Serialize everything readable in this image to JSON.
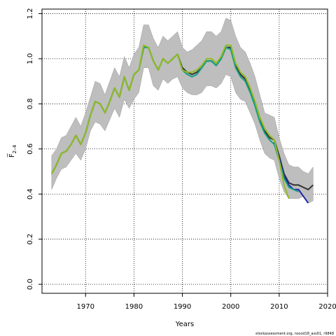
{
  "chart_data": {
    "type": "line",
    "xlabel": "Years",
    "ylabel": "F̅",
    "ylabel_sub": "2–4",
    "footer": "stockassessment.org, nscod18_ass01, r9848",
    "xlim": [
      1961,
      2020
    ],
    "ylim": [
      -0.04,
      1.22
    ],
    "xticks": [
      1970,
      1980,
      1990,
      2000,
      2010,
      2020
    ],
    "yticks": [
      0.0,
      0.2,
      0.4,
      0.6,
      0.8,
      1.0,
      1.2
    ],
    "ytick_labels": [
      "0.0",
      "0.2",
      "0.4",
      "0.6",
      "0.8",
      "1.0",
      "1.2"
    ],
    "grid": true,
    "band_color": "#bebebe",
    "band": {
      "x": [
        1963,
        1964,
        1965,
        1966,
        1967,
        1968,
        1969,
        1970,
        1971,
        1972,
        1973,
        1974,
        1975,
        1976,
        1977,
        1978,
        1979,
        1980,
        1981,
        1982,
        1983,
        1984,
        1985,
        1986,
        1987,
        1988,
        1989,
        1990,
        1991,
        1992,
        1993,
        1994,
        1995,
        1996,
        1997,
        1998,
        1999,
        2000,
        2001,
        2002,
        2003,
        2004,
        2005,
        2006,
        2007,
        2008,
        2009,
        2010,
        2011,
        2012,
        2013,
        2014,
        2015,
        2016,
        2017
      ],
      "lower": [
        0.42,
        0.47,
        0.51,
        0.52,
        0.55,
        0.58,
        0.55,
        0.6,
        0.68,
        0.72,
        0.71,
        0.68,
        0.73,
        0.78,
        0.74,
        0.82,
        0.78,
        0.82,
        0.85,
        0.96,
        0.96,
        0.88,
        0.86,
        0.91,
        0.89,
        0.91,
        0.92,
        0.87,
        0.85,
        0.84,
        0.84,
        0.85,
        0.88,
        0.88,
        0.87,
        0.89,
        0.93,
        0.92,
        0.85,
        0.82,
        0.81,
        0.76,
        0.71,
        0.64,
        0.58,
        0.56,
        0.55,
        0.47,
        0.41,
        0.38,
        0.38,
        0.38,
        0.39,
        0.36,
        0.37
      ],
      "upper": [
        0.57,
        0.6,
        0.65,
        0.66,
        0.7,
        0.74,
        0.7,
        0.76,
        0.83,
        0.9,
        0.89,
        0.84,
        0.9,
        0.96,
        0.92,
        1.01,
        0.96,
        1.02,
        1.05,
        1.15,
        1.15,
        1.09,
        1.05,
        1.1,
        1.08,
        1.1,
        1.12,
        1.05,
        1.03,
        1.04,
        1.06,
        1.08,
        1.12,
        1.12,
        1.1,
        1.12,
        1.18,
        1.17,
        1.1,
        1.05,
        1.03,
        0.98,
        0.92,
        0.84,
        0.76,
        0.75,
        0.74,
        0.65,
        0.58,
        0.53,
        0.52,
        0.52,
        0.5,
        0.49,
        0.52
      ]
    },
    "series": [
      {
        "color": "#333333",
        "x": [
          1963,
          1964,
          1965,
          1966,
          1967,
          1968,
          1969,
          1970,
          1971,
          1972,
          1973,
          1974,
          1975,
          1976,
          1977,
          1978,
          1979,
          1980,
          1981,
          1982,
          1983,
          1984,
          1985,
          1986,
          1987,
          1988,
          1989,
          1990,
          1991,
          1992,
          1993,
          1994,
          1995,
          1996,
          1997,
          1998,
          1999,
          2000,
          2001,
          2002,
          2003,
          2004,
          2005,
          2006,
          2007,
          2008,
          2009,
          2010,
          2011,
          2012,
          2013,
          2014,
          2015,
          2016,
          2017
        ],
        "y": [
          0.49,
          0.53,
          0.58,
          0.59,
          0.62,
          0.66,
          0.62,
          0.67,
          0.75,
          0.81,
          0.8,
          0.76,
          0.81,
          0.87,
          0.83,
          0.92,
          0.86,
          0.93,
          0.95,
          1.05,
          1.05,
          0.99,
          0.95,
          1.0,
          0.98,
          1.0,
          1.02,
          0.96,
          0.94,
          0.93,
          0.94,
          0.96,
          0.99,
          0.99,
          0.97,
          1.0,
          1.05,
          1.05,
          0.97,
          0.93,
          0.91,
          0.86,
          0.8,
          0.73,
          0.68,
          0.65,
          0.64,
          0.57,
          0.49,
          0.45,
          0.44,
          0.44,
          0.43,
          0.42,
          0.44
        ]
      },
      {
        "color": "#2222aa",
        "x": [
          2009,
          2010,
          2011,
          2012,
          2013,
          2014,
          2015,
          2016
        ],
        "y": [
          0.63,
          0.56,
          0.48,
          0.44,
          0.42,
          0.42,
          0.39,
          0.36
        ]
      },
      {
        "color": "#16a085",
        "x": [
          1963,
          1964,
          1965,
          1966,
          1967,
          1968,
          1969,
          1970,
          1971,
          1972,
          1973,
          1974,
          1975,
          1976,
          1977,
          1978,
          1979,
          1980,
          1981,
          1982,
          1983,
          1984,
          1985,
          1986,
          1987,
          1988,
          1989,
          1990,
          1991,
          1992,
          1993,
          1994,
          1995,
          1996,
          1997,
          1998,
          1999,
          2000,
          2001,
          2002,
          2003,
          2004,
          2005,
          2006,
          2007,
          2008,
          2009,
          2010,
          2011,
          2012,
          2013,
          2014
        ],
        "y": [
          0.49,
          0.53,
          0.58,
          0.59,
          0.62,
          0.66,
          0.62,
          0.67,
          0.75,
          0.81,
          0.8,
          0.76,
          0.81,
          0.87,
          0.83,
          0.92,
          0.86,
          0.93,
          0.95,
          1.05,
          1.05,
          0.99,
          0.95,
          1.0,
          0.98,
          1.0,
          1.02,
          0.95,
          0.93,
          0.92,
          0.93,
          0.96,
          0.99,
          0.99,
          0.97,
          1.0,
          1.05,
          1.04,
          0.96,
          0.92,
          0.9,
          0.85,
          0.79,
          0.72,
          0.67,
          0.64,
          0.62,
          0.55,
          0.47,
          0.43,
          0.42,
          0.41
        ]
      },
      {
        "color": "#8fbc1f",
        "x": [
          1963,
          1964,
          1965,
          1966,
          1967,
          1968,
          1969,
          1970,
          1971,
          1972,
          1973,
          1974,
          1975,
          1976,
          1977,
          1978,
          1979,
          1980,
          1981,
          1982,
          1983,
          1984,
          1985,
          1986,
          1987,
          1988,
          1989,
          1990,
          1991,
          1992,
          1993,
          1994,
          1995,
          1996,
          1997,
          1998,
          1999,
          2000,
          2001,
          2002,
          2003,
          2004,
          2005,
          2006,
          2007,
          2008,
          2009,
          2010,
          2011,
          2012
        ],
        "y": [
          0.49,
          0.53,
          0.58,
          0.59,
          0.62,
          0.66,
          0.62,
          0.67,
          0.75,
          0.81,
          0.8,
          0.76,
          0.81,
          0.87,
          0.83,
          0.92,
          0.86,
          0.93,
          0.95,
          1.06,
          1.05,
          0.99,
          0.95,
          1.0,
          0.98,
          1.0,
          1.02,
          0.95,
          0.94,
          0.94,
          0.95,
          0.97,
          1.0,
          1.0,
          0.98,
          1.01,
          1.06,
          1.06,
          0.98,
          0.94,
          0.92,
          0.87,
          0.81,
          0.74,
          0.69,
          0.66,
          0.64,
          0.55,
          0.44,
          0.38
        ]
      }
    ]
  }
}
